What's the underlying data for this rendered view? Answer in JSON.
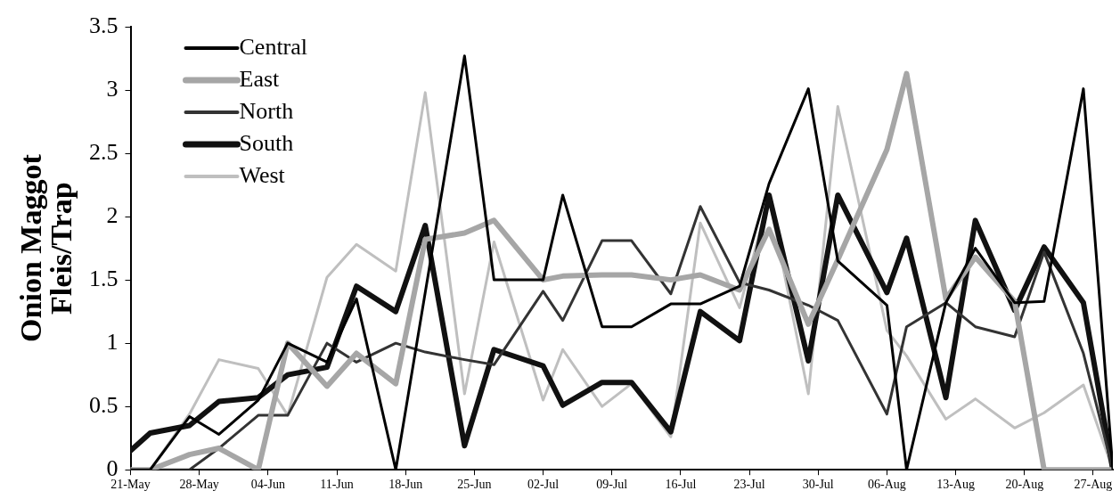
{
  "chart_data": {
    "type": "line",
    "ylabel": "Onion Maggot\nFleis/Trap",
    "x": [
      "--05-21",
      "--05-23",
      "--05-27",
      "--05-30",
      "--06-03",
      "--06-06",
      "--06-10",
      "--06-13",
      "--06-17",
      "--06-20",
      "--06-24",
      "--06-27",
      "--07-02",
      "--07-04",
      "--07-08",
      "--07-11",
      "--07-15",
      "--07-18",
      "--07-22",
      "--07-25",
      "--07-29",
      "--08-01",
      "--08-06",
      "--08-08",
      "--08-12",
      "--08-15",
      "--08-19",
      "--08-22",
      "--08-26",
      "--08-29"
    ],
    "series": [
      {
        "name": "Central",
        "color": "#000000",
        "values": [
          0,
          0,
          0.42,
          0.28,
          0.55,
          1.0,
          0.85,
          1.35,
          0,
          1.4,
          3.27,
          1.5,
          1.5,
          2.17,
          1.13,
          1.13,
          1.31,
          1.31,
          1.45,
          2.26,
          3.01,
          1.65,
          1.3,
          0,
          1.32,
          1.75,
          1.32,
          1.33,
          3.01,
          0
        ]
      },
      {
        "name": "East",
        "color": "#a6a6a6",
        "values": [
          0,
          0,
          0.12,
          0.17,
          0,
          1.0,
          0.66,
          0.92,
          0.68,
          1.82,
          1.87,
          1.97,
          1.5,
          1.53,
          1.54,
          1.54,
          1.5,
          1.54,
          1.42,
          1.9,
          1.15,
          1.66,
          2.53,
          3.13,
          1.35,
          1.68,
          1.33,
          0,
          0,
          0
        ]
      },
      {
        "name": "North",
        "color": "#333333",
        "values": [
          0,
          0,
          0,
          0.17,
          0.43,
          0.43,
          1.0,
          0.85,
          1.0,
          0.93,
          0.87,
          0.83,
          1.41,
          1.18,
          1.81,
          1.81,
          1.39,
          2.08,
          1.48,
          1.42,
          1.3,
          1.18,
          0.44,
          1.13,
          1.32,
          1.13,
          1.05,
          1.72,
          0.92,
          0
        ]
      },
      {
        "name": "South",
        "color": "#111111",
        "values": [
          0.15,
          0.29,
          0.35,
          0.54,
          0.57,
          0.75,
          0.81,
          1.45,
          1.25,
          1.93,
          0.19,
          0.95,
          0.82,
          0.51,
          0.69,
          0.69,
          0.3,
          1.25,
          1.02,
          2.17,
          0.86,
          2.17,
          1.4,
          1.83,
          0.57,
          1.97,
          1.26,
          1.76,
          1.32,
          0
        ]
      },
      {
        "name": "West",
        "color": "#bfbfbf",
        "values": [
          0,
          0,
          0.44,
          0.87,
          0.8,
          0.43,
          1.52,
          1.78,
          1.57,
          2.98,
          0.6,
          1.8,
          0.55,
          0.95,
          0.5,
          0.68,
          0.26,
          1.95,
          1.28,
          2.15,
          0.6,
          2.87,
          1.1,
          0.9,
          0.4,
          0.56,
          0.33,
          0.45,
          0.67,
          0
        ]
      }
    ],
    "xlim": [
      "--05-21",
      "--08-29"
    ],
    "xticks": [
      {
        "value": "--05-21",
        "label": "21-May"
      },
      {
        "value": "--05-28",
        "label": "28-May"
      },
      {
        "value": "--06-04",
        "label": "04-Jun"
      },
      {
        "value": "--06-11",
        "label": "11-Jun"
      },
      {
        "value": "--06-18",
        "label": "18-Jun"
      },
      {
        "value": "--06-25",
        "label": "25-Jun"
      },
      {
        "value": "--07-02",
        "label": "02-Jul"
      },
      {
        "value": "--07-09",
        "label": "09-Jul"
      },
      {
        "value": "--07-16",
        "label": "16-Jul"
      },
      {
        "value": "--07-23",
        "label": "23-Jul"
      },
      {
        "value": "--07-30",
        "label": "30-Jul"
      },
      {
        "value": "--08-06",
        "label": "06-Aug"
      },
      {
        "value": "--08-13",
        "label": "13-Aug"
      },
      {
        "value": "--08-20",
        "label": "20-Aug"
      },
      {
        "value": "--08-27",
        "label": "27-Aug"
      }
    ],
    "ylim": [
      0,
      3.5
    ],
    "yticks": [
      0,
      0.5,
      1,
      1.5,
      2,
      2.5,
      3,
      3.5
    ],
    "grid": false,
    "legend": "top left",
    "marker": "none",
    "line_style": "solid"
  }
}
